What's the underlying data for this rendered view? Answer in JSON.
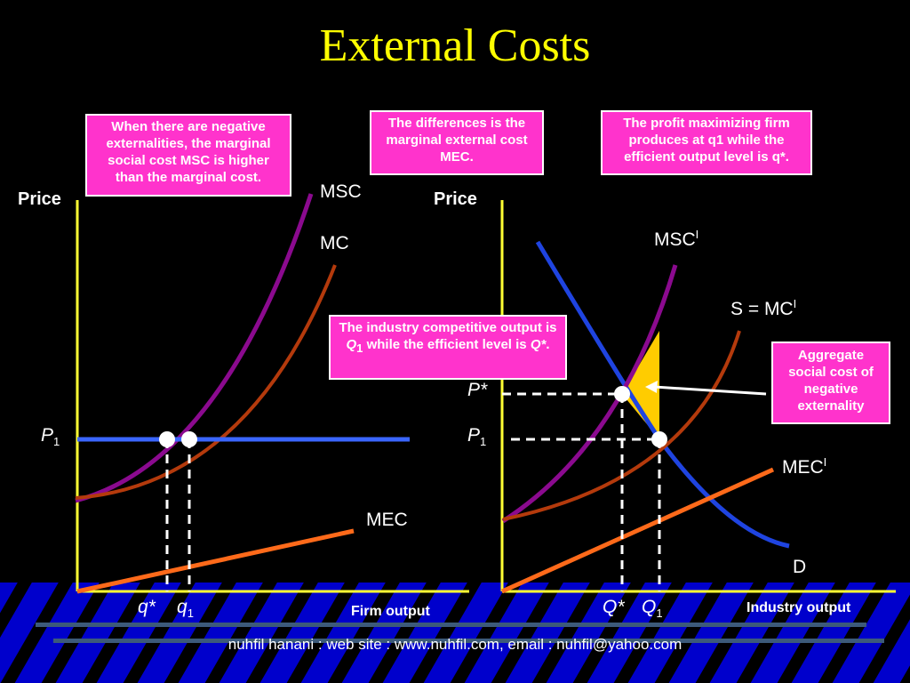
{
  "title": "External Costs",
  "notes": {
    "note1": "When there are negative externalities, the marginal social cost MSC is higher than the marginal cost.",
    "note2": "The differences is the marginal external cost MEC.",
    "note3": "The profit maximizing firm produces at q1 while the efficient output level is q*.",
    "note4_part1": "The industry competitive output is ",
    "note4_q": "Q",
    "note4_q_sub": "1",
    "note4_part2": " while the efficient level is ",
    "note4_qstar": "Q*",
    "note4_end": ".",
    "note5": "Aggregate social cost of negative externality"
  },
  "left_graph": {
    "y_axis_label": "Price",
    "x_axis_label": "Firm output",
    "curve_msc": "MSC",
    "curve_mc": "MC",
    "curve_mec": "MEC",
    "price_label": "P",
    "price_sub": "1",
    "q_star": "q*",
    "q1": "q",
    "q1_sub": "1"
  },
  "right_graph": {
    "y_axis_label": "Price",
    "x_axis_label": "Industry output",
    "curve_msc": "MSC",
    "curve_msc_sup": "I",
    "curve_s": "S = MC",
    "curve_s_sup": "I",
    "curve_mec": "MEC",
    "curve_mec_sup": "I",
    "curve_d": "D",
    "p_star": "P*",
    "p1": "P",
    "p1_sub": "1",
    "q_star": "Q*",
    "q1": "Q",
    "q1_sub": "1"
  },
  "footer": "nuhfil hanani : web site : www.nuhfil.com, email : nuhfil@yahoo.com",
  "colors": {
    "background": "#000000",
    "title": "#ffff00",
    "note_fill": "#ff33cc",
    "axis": "#ffff33",
    "msc": "#8b0a8f",
    "mc": "#b43a0c",
    "mec": "#ff6a1a",
    "price_line": "#3a66ff",
    "demand": "#1f44e0",
    "area": "#ffcc00",
    "stripe_a": "#0000cc",
    "stripe_b": "#000000"
  }
}
